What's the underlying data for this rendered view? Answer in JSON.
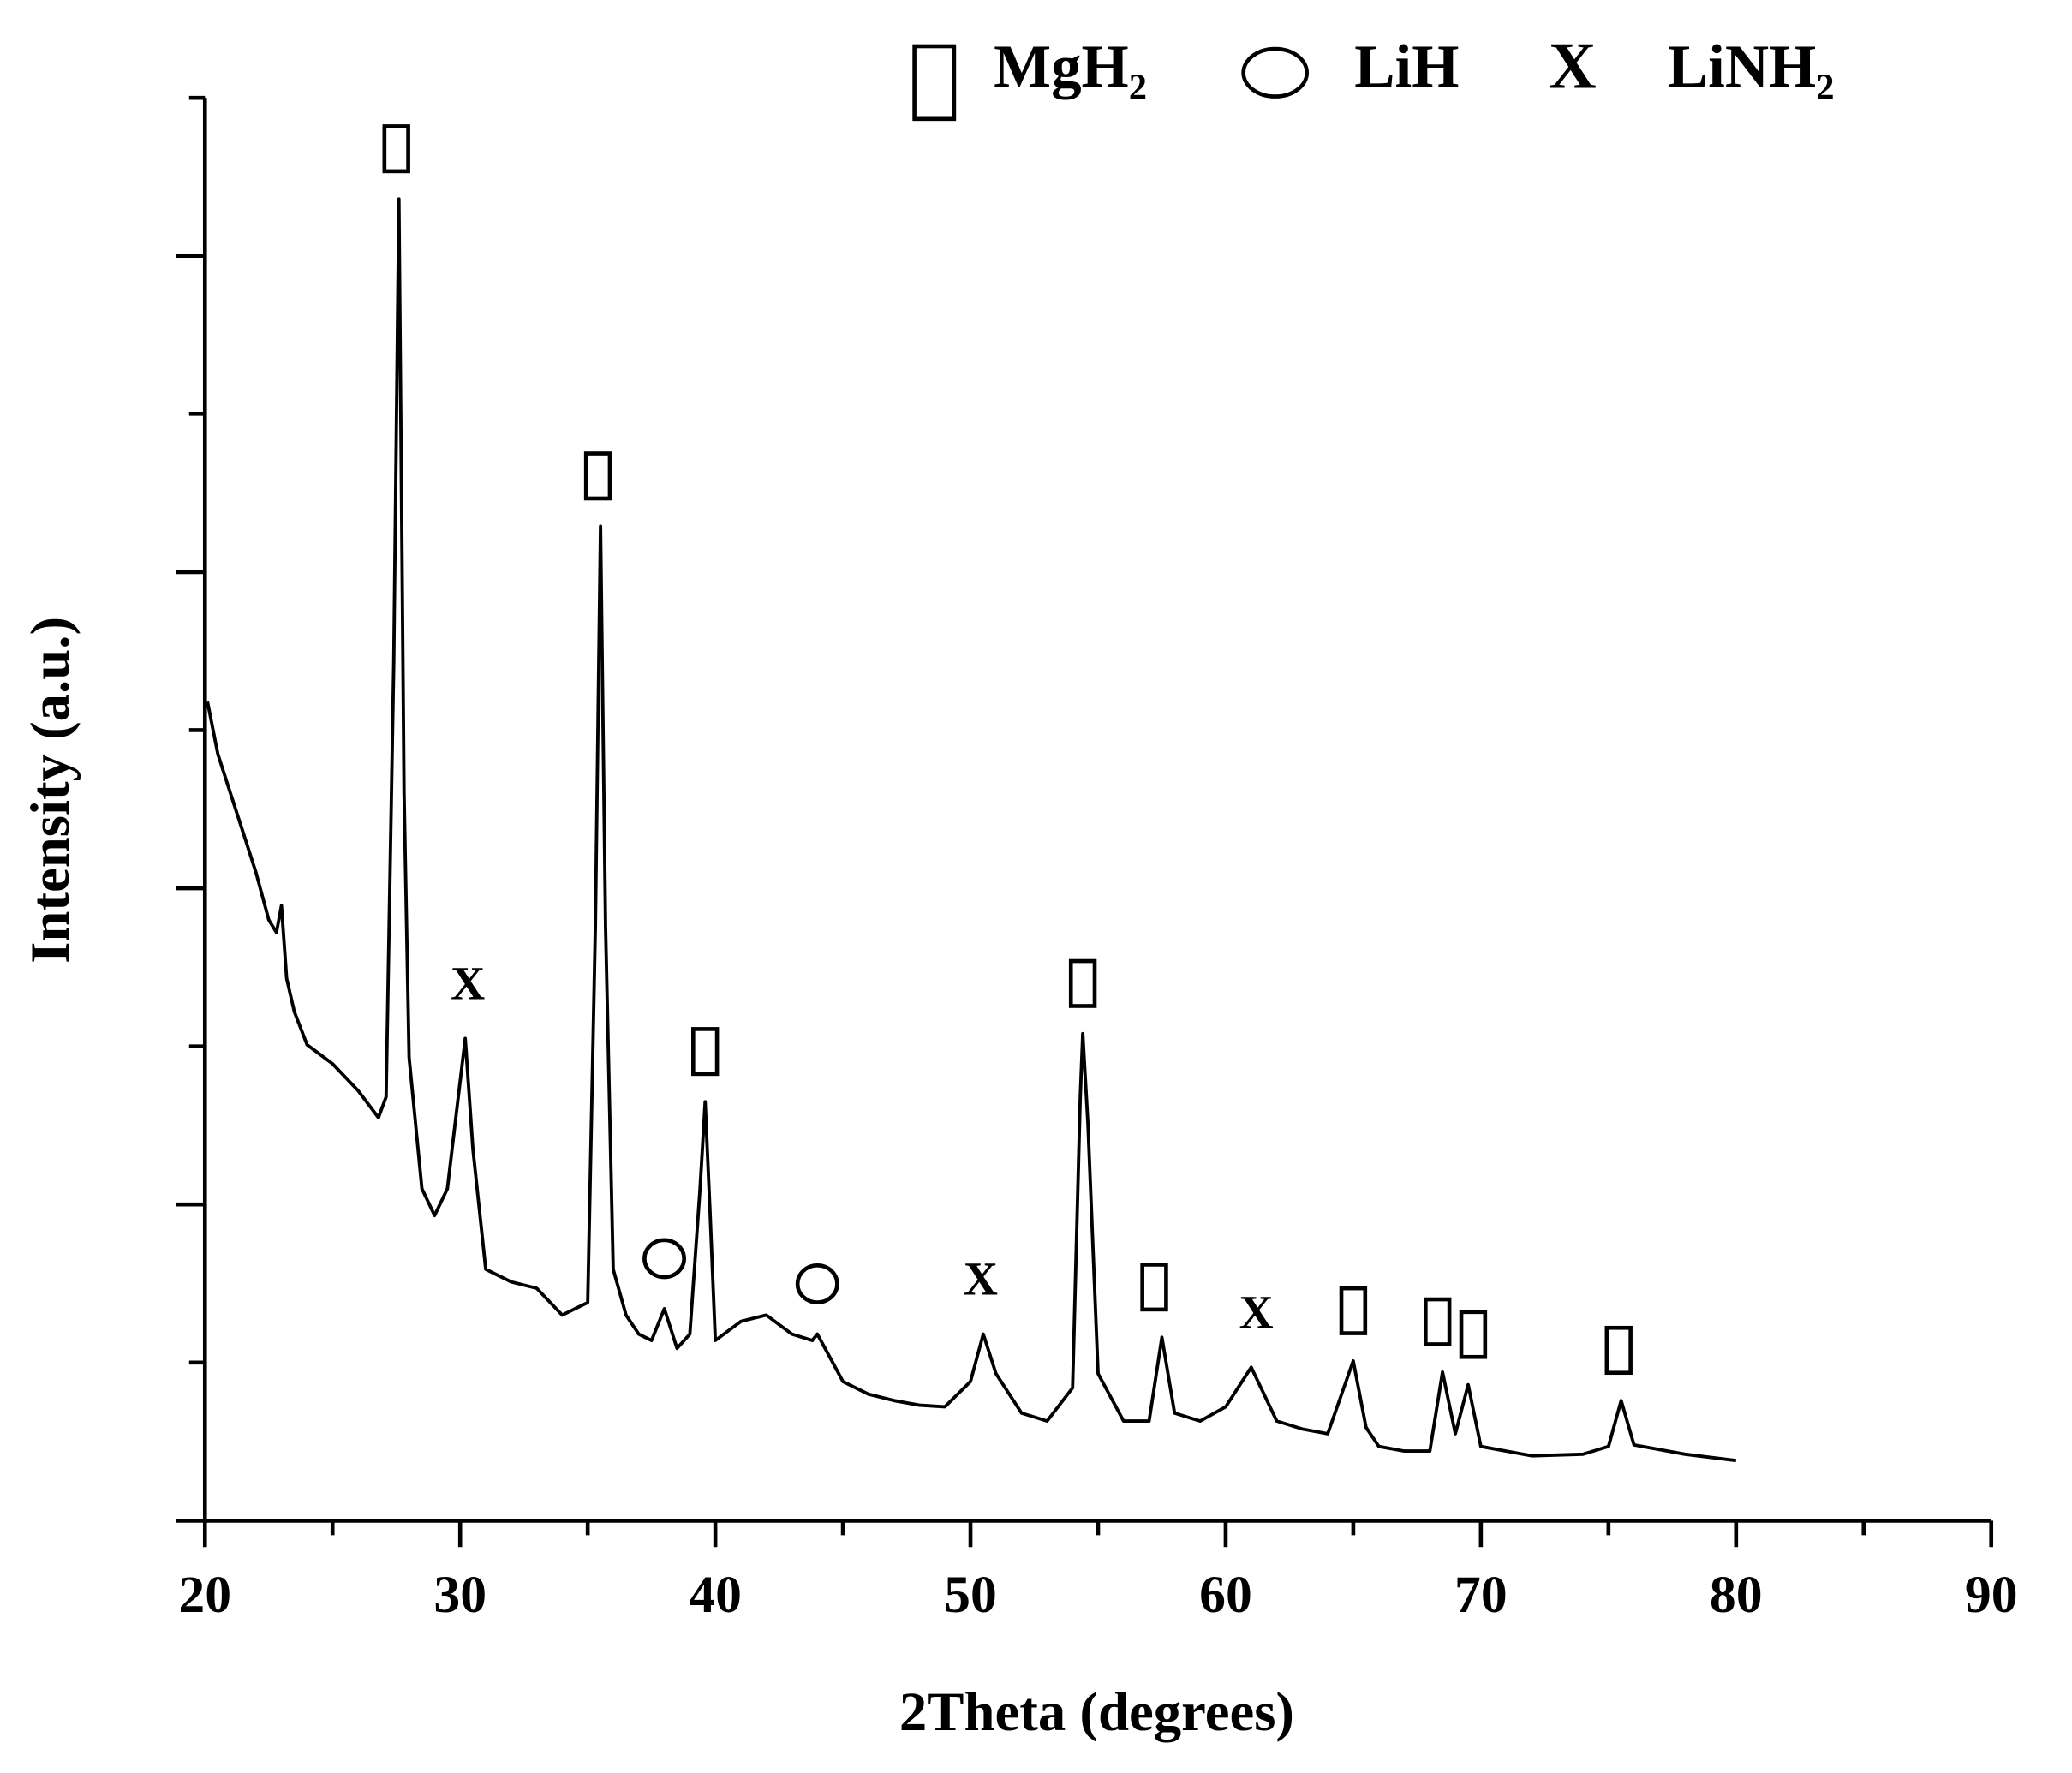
{
  "chart_data": {
    "type": "line",
    "xlabel": "2Theta (degrees)",
    "ylabel": "Intensity (a.u.)",
    "xlim": [
      20,
      90
    ],
    "xticks": [
      20,
      30,
      40,
      50,
      60,
      70,
      80,
      90
    ],
    "xminorticks": [
      25,
      35,
      45,
      55,
      65,
      75,
      85
    ],
    "ylim": [
      0,
      9
    ],
    "yticks": [
      0,
      2,
      4,
      6,
      8
    ],
    "yminorticks": [
      1,
      3,
      5,
      7,
      9
    ],
    "color": "#000000",
    "x": [
      20.1,
      20.5,
      21,
      21.5,
      22,
      22.5,
      22.8,
      23,
      23.2,
      23.5,
      24,
      25,
      26,
      26.8,
      27.1,
      27.4,
      27.6,
      27.8,
      28,
      28.5,
      29,
      29.5,
      29.8,
      30.2,
      30.5,
      31,
      32,
      33,
      34,
      35,
      35.3,
      35.5,
      35.7,
      36,
      36.5,
      37,
      37.5,
      38,
      38.5,
      39,
      39.4,
      39.6,
      39.8,
      40,
      41,
      42,
      43,
      43.8,
      44,
      45,
      46,
      47,
      48,
      49,
      50,
      50.5,
      51,
      52,
      53,
      54,
      54.3,
      54.4,
      54.6,
      55,
      56,
      57,
      57.5,
      58,
      59,
      60,
      61,
      62,
      63,
      64,
      65,
      65.5,
      66,
      67,
      68,
      68.5,
      69,
      69.5,
      70,
      72,
      74,
      75,
      75.5,
      76,
      78,
      80
    ],
    "values": [
      5.18,
      4.85,
      4.6,
      4.35,
      4.1,
      3.8,
      3.72,
      3.89,
      3.43,
      3.22,
      3.01,
      2.89,
      2.72,
      2.55,
      2.68,
      5.43,
      8.36,
      4.6,
      2.93,
      2.1,
      1.93,
      2.1,
      2.51,
      3.05,
      2.35,
      1.59,
      1.51,
      1.47,
      1.3,
      1.38,
      3.76,
      6.29,
      3.76,
      1.59,
      1.3,
      1.18,
      1.14,
      1.34,
      1.09,
      1.18,
      2.1,
      2.65,
      1.93,
      1.14,
      1.26,
      1.3,
      1.18,
      1.14,
      1.18,
      0.88,
      0.8,
      0.76,
      0.73,
      0.72,
      0.88,
      1.18,
      0.93,
      0.68,
      0.63,
      0.84,
      2.68,
      3.08,
      2.51,
      0.93,
      0.63,
      0.63,
      1.16,
      0.68,
      0.63,
      0.72,
      0.97,
      0.63,
      0.58,
      0.55,
      1.01,
      0.59,
      0.47,
      0.44,
      0.44,
      0.94,
      0.55,
      0.86,
      0.47,
      0.41,
      0.42,
      0.47,
      0.76,
      0.48,
      0.42,
      0.38
    ],
    "legend": [
      {
        "marker": "square",
        "label": "MgH₂"
      },
      {
        "marker": "circle",
        "label": "LiH"
      },
      {
        "marker": "text",
        "symbol": "X",
        "label": "LiNH₂"
      }
    ],
    "annotations": [
      {
        "x": 27.5,
        "phase": 0
      },
      {
        "x": 30.3,
        "phase": 2
      },
      {
        "x": 35.4,
        "phase": 0
      },
      {
        "x": 38,
        "phase": 1
      },
      {
        "x": 39.6,
        "phase": 0
      },
      {
        "x": 44,
        "phase": 1
      },
      {
        "x": 50.4,
        "phase": 2
      },
      {
        "x": 54.4,
        "phase": 0
      },
      {
        "x": 57.2,
        "phase": 0
      },
      {
        "x": 61.2,
        "phase": 2
      },
      {
        "x": 65,
        "phase": 0
      },
      {
        "x": 68.3,
        "phase": 0
      },
      {
        "x": 69.7,
        "phase": 0
      },
      {
        "x": 75.4,
        "phase": 0
      }
    ]
  }
}
